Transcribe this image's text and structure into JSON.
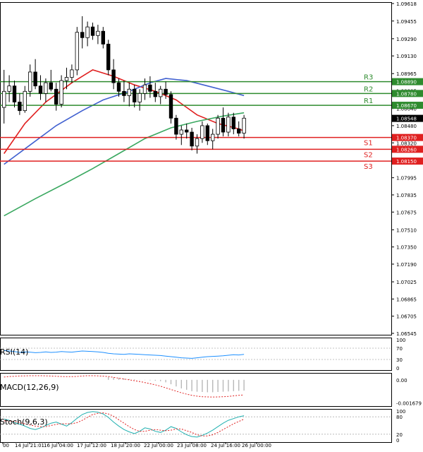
{
  "chart_data": {
    "type": "candlestick",
    "main": {
      "y_ticks": [
        "1.09618",
        "1.09455",
        "1.09290",
        "1.09130",
        "1.08965",
        "1.08805",
        "1.08640",
        "1.08480",
        "1.08320",
        "1.08155",
        "1.07995",
        "1.07835",
        "1.07675",
        "1.07510",
        "1.07350",
        "1.07190",
        "1.07025",
        "1.06865",
        "1.06705",
        "1.06545"
      ],
      "ylim": [
        1.06545,
        1.09618
      ],
      "candles": [
        {
          "o": 1.0865,
          "h": 1.09,
          "l": 1.085,
          "c": 1.088
        },
        {
          "o": 1.088,
          "h": 1.0895,
          "l": 1.087,
          "c": 1.0885
        },
        {
          "o": 1.0885,
          "h": 1.089,
          "l": 1.0865,
          "c": 1.087
        },
        {
          "o": 1.087,
          "h": 1.0878,
          "l": 1.0858,
          "c": 1.0862
        },
        {
          "o": 1.0862,
          "h": 1.0885,
          "l": 1.086,
          "c": 1.088
        },
        {
          "o": 1.088,
          "h": 1.0905,
          "l": 1.0875,
          "c": 1.0898
        },
        {
          "o": 1.0898,
          "h": 1.091,
          "l": 1.0882,
          "c": 1.0885
        },
        {
          "o": 1.0885,
          "h": 1.0895,
          "l": 1.0872,
          "c": 1.0878
        },
        {
          "o": 1.0878,
          "h": 1.0892,
          "l": 1.087,
          "c": 1.0888
        },
        {
          "o": 1.0888,
          "h": 1.09,
          "l": 1.088,
          "c": 1.0882
        },
        {
          "o": 1.0882,
          "h": 1.0888,
          "l": 1.0862,
          "c": 1.0868
        },
        {
          "o": 1.0868,
          "h": 1.0895,
          "l": 1.0865,
          "c": 1.089
        },
        {
          "o": 1.089,
          "h": 1.0902,
          "l": 1.0882,
          "c": 1.0893
        },
        {
          "o": 1.0893,
          "h": 1.0905,
          "l": 1.0888,
          "c": 1.09
        },
        {
          "o": 1.09,
          "h": 1.094,
          "l": 1.0895,
          "c": 1.0935
        },
        {
          "o": 1.0935,
          "h": 1.095,
          "l": 1.092,
          "c": 1.093
        },
        {
          "o": 1.093,
          "h": 1.0945,
          "l": 1.0922,
          "c": 1.094
        },
        {
          "o": 1.094,
          "h": 1.0944,
          "l": 1.0928,
          "c": 1.0932
        },
        {
          "o": 1.0932,
          "h": 1.0942,
          "l": 1.0924,
          "c": 1.0936
        },
        {
          "o": 1.0936,
          "h": 1.094,
          "l": 1.092,
          "c": 1.0924
        },
        {
          "o": 1.0924,
          "h": 1.0928,
          "l": 1.0895,
          "c": 1.09
        },
        {
          "o": 1.09,
          "h": 1.091,
          "l": 1.0882,
          "c": 1.0888
        },
        {
          "o": 1.0888,
          "h": 1.0892,
          "l": 1.0875,
          "c": 1.088
        },
        {
          "o": 1.088,
          "h": 1.089,
          "l": 1.087,
          "c": 1.0876
        },
        {
          "o": 1.0876,
          "h": 1.0888,
          "l": 1.0866,
          "c": 1.0882
        },
        {
          "o": 1.0882,
          "h": 1.0886,
          "l": 1.0865,
          "c": 1.087
        },
        {
          "o": 1.087,
          "h": 1.0882,
          "l": 1.0862,
          "c": 1.0878
        },
        {
          "o": 1.0878,
          "h": 1.0892,
          "l": 1.0872,
          "c": 1.0886
        },
        {
          "o": 1.0886,
          "h": 1.0894,
          "l": 1.0874,
          "c": 1.088
        },
        {
          "o": 1.088,
          "h": 1.0888,
          "l": 1.087,
          "c": 1.0875
        },
        {
          "o": 1.0875,
          "h": 1.0885,
          "l": 1.0868,
          "c": 1.0882
        },
        {
          "o": 1.0882,
          "h": 1.0889,
          "l": 1.0873,
          "c": 1.0877
        },
        {
          "o": 1.0877,
          "h": 1.088,
          "l": 1.085,
          "c": 1.0855
        },
        {
          "o": 1.0855,
          "h": 1.0858,
          "l": 1.0835,
          "c": 1.084
        },
        {
          "o": 1.084,
          "h": 1.0848,
          "l": 1.083,
          "c": 1.0844
        },
        {
          "o": 1.0844,
          "h": 1.085,
          "l": 1.0836,
          "c": 1.0842
        },
        {
          "o": 1.0842,
          "h": 1.0846,
          "l": 1.0825,
          "c": 1.0829
        },
        {
          "o": 1.0829,
          "h": 1.084,
          "l": 1.0822,
          "c": 1.0836
        },
        {
          "o": 1.0836,
          "h": 1.0852,
          "l": 1.0832,
          "c": 1.0848
        },
        {
          "o": 1.0848,
          "h": 1.085,
          "l": 1.083,
          "c": 1.0834
        },
        {
          "o": 1.0834,
          "h": 1.0845,
          "l": 1.0826,
          "c": 1.084
        },
        {
          "o": 1.084,
          "h": 1.0858,
          "l": 1.0836,
          "c": 1.0855
        },
        {
          "o": 1.0855,
          "h": 1.0865,
          "l": 1.0838,
          "c": 1.0842
        },
        {
          "o": 1.0842,
          "h": 1.086,
          "l": 1.0838,
          "c": 1.0856
        },
        {
          "o": 1.0856,
          "h": 1.086,
          "l": 1.084,
          "c": 1.0845
        },
        {
          "o": 1.0845,
          "h": 1.0852,
          "l": 1.0838,
          "c": 1.0841
        },
        {
          "o": 1.0841,
          "h": 1.0858,
          "l": 1.0836,
          "c": 1.0855
        }
      ],
      "moving_averages": [
        {
          "color": "#e02020",
          "points": [
            [
              0,
              1.0822
            ],
            [
              4,
              1.085
            ],
            [
              8,
              1.087
            ],
            [
              13,
              1.0888
            ],
            [
              17,
              1.09
            ],
            [
              21,
              1.0894
            ],
            [
              25,
              1.0886
            ],
            [
              29,
              1.088
            ],
            [
              33,
              1.0872
            ],
            [
              37,
              1.0858
            ],
            [
              41,
              1.085
            ],
            [
              45,
              1.0845
            ],
            [
              46,
              1.0843
            ]
          ]
        },
        {
          "color": "#4060d0",
          "points": [
            [
              0,
              1.0812
            ],
            [
              5,
              1.083
            ],
            [
              10,
              1.0848
            ],
            [
              15,
              1.0862
            ],
            [
              19,
              1.0872
            ],
            [
              24,
              1.088
            ],
            [
              28,
              1.0888
            ],
            [
              31,
              1.0892
            ],
            [
              35,
              1.089
            ],
            [
              39,
              1.0885
            ],
            [
              43,
              1.088
            ],
            [
              46,
              1.0876
            ]
          ]
        },
        {
          "color": "#3aa860",
          "points": [
            [
              0,
              1.0764
            ],
            [
              6,
              1.078
            ],
            [
              12,
              1.0795
            ],
            [
              17,
              1.0808
            ],
            [
              22,
              1.0822
            ],
            [
              27,
              1.0836
            ],
            [
              32,
              1.0846
            ],
            [
              37,
              1.0852
            ],
            [
              42,
              1.0857
            ],
            [
              46,
              1.086
            ]
          ]
        }
      ],
      "levels": [
        {
          "name": "R3",
          "value": 1.0889,
          "label": "1.08890",
          "color": "#2e8b2e"
        },
        {
          "name": "R2",
          "value": 1.0878,
          "label": "1.08780",
          "color": "#2e8b2e"
        },
        {
          "name": "R1",
          "value": 1.0867,
          "label": "1.08670",
          "color": "#2e8b2e"
        },
        {
          "name": "S1",
          "value": 1.0837,
          "label": "1.08370",
          "color": "#e02020"
        },
        {
          "name": "S2",
          "value": 1.0826,
          "label": "1.08260",
          "color": "#e02020"
        },
        {
          "name": "S3",
          "value": 1.0815,
          "label": "1.08150",
          "color": "#e02020"
        }
      ],
      "current_price": {
        "value": 1.08548,
        "label": "1.08548"
      }
    },
    "rsi": {
      "label": "RSI(14)",
      "ticks": [
        "100",
        "70",
        "30",
        "0"
      ],
      "ylim": [
        0,
        100
      ],
      "values": [
        62,
        60,
        58,
        55,
        57,
        56,
        54,
        55,
        57,
        55,
        56,
        58,
        57,
        56,
        58,
        60,
        59,
        58,
        57,
        55,
        52,
        50,
        49,
        48,
        50,
        49,
        48,
        47,
        46,
        45,
        44,
        42,
        40,
        38,
        36,
        35,
        34,
        36,
        38,
        40,
        41,
        42,
        43,
        45,
        47,
        46,
        48
      ]
    },
    "macd": {
      "label": "MACD(12,26,9)",
      "ticks": [
        "0.00",
        "-0.001679"
      ],
      "ylim": [
        -0.00175,
        0.00035
      ],
      "histogram": [
        0,
        0,
        0,
        0,
        0,
        0,
        0,
        0,
        0,
        0,
        0,
        0,
        0,
        0,
        0,
        0,
        0,
        0,
        0,
        0,
        0.0002,
        0.00018,
        0.00015,
        0.0001,
        6e-05,
        4e-05,
        1e-05,
        -2e-05,
        -4e-05,
        -6e-05,
        -0.0001,
        -0.00018,
        -0.00032,
        -0.00048,
        -0.00062,
        -0.00072,
        -0.00082,
        -0.00086,
        -0.00088,
        -0.0009,
        -0.0009,
        -0.00088,
        -0.00086,
        -0.00084,
        -0.00082,
        -0.0008,
        -0.00078
      ],
      "signal": [
        0.0002,
        0.00024,
        0.00026,
        0.00028,
        0.00029,
        0.0003,
        0.0003,
        0.0003,
        0.00029,
        0.00028,
        0.00026,
        0.00024,
        0.00023,
        0.00023,
        0.00025,
        0.00028,
        0.0003,
        0.0003,
        0.00029,
        0.00027,
        0.00024,
        0.00018,
        0.00012,
        6e-05,
        0.0,
        -6e-05,
        -0.00012,
        -0.0002,
        -0.00028,
        -0.00036,
        -0.00046,
        -0.00058,
        -0.0007,
        -0.00082,
        -0.00094,
        -0.00104,
        -0.00112,
        -0.00118,
        -0.00122,
        -0.00124,
        -0.00125,
        -0.00124,
        -0.00122,
        -0.0012,
        -0.00116,
        -0.00112,
        -0.0011
      ]
    },
    "stoch": {
      "label": "Stoch(9,6,3)",
      "ticks": [
        "100",
        "80",
        "20",
        "0"
      ],
      "ylim": [
        0,
        100
      ],
      "main": [
        72,
        68,
        60,
        55,
        48,
        40,
        36,
        42,
        50,
        58,
        62,
        55,
        48,
        60,
        75,
        88,
        95,
        98,
        96,
        90,
        78,
        62,
        48,
        36,
        28,
        22,
        30,
        42,
        38,
        30,
        26,
        34,
        46,
        40,
        28,
        18,
        12,
        10,
        16,
        24,
        34,
        46,
        58,
        68,
        74,
        80,
        84
      ],
      "signal": [
        66,
        66,
        64,
        60,
        56,
        52,
        48,
        46,
        46,
        50,
        54,
        56,
        56,
        56,
        60,
        68,
        78,
        88,
        92,
        94,
        90,
        82,
        70,
        58,
        46,
        36,
        30,
        30,
        34,
        36,
        34,
        32,
        34,
        38,
        38,
        32,
        26,
        18,
        14,
        14,
        18,
        26,
        36,
        46,
        56,
        64,
        72
      ]
    },
    "x_ticks": [
      "00",
      "14 Jul 21:01",
      "16 Jul 04:00",
      "17 Jul 12:00",
      "18 Jul 20:00",
      "22 Jul 00:00",
      "23 Jul 08:00",
      "24 Jul 16:00",
      "26 Jul 00:00"
    ]
  }
}
